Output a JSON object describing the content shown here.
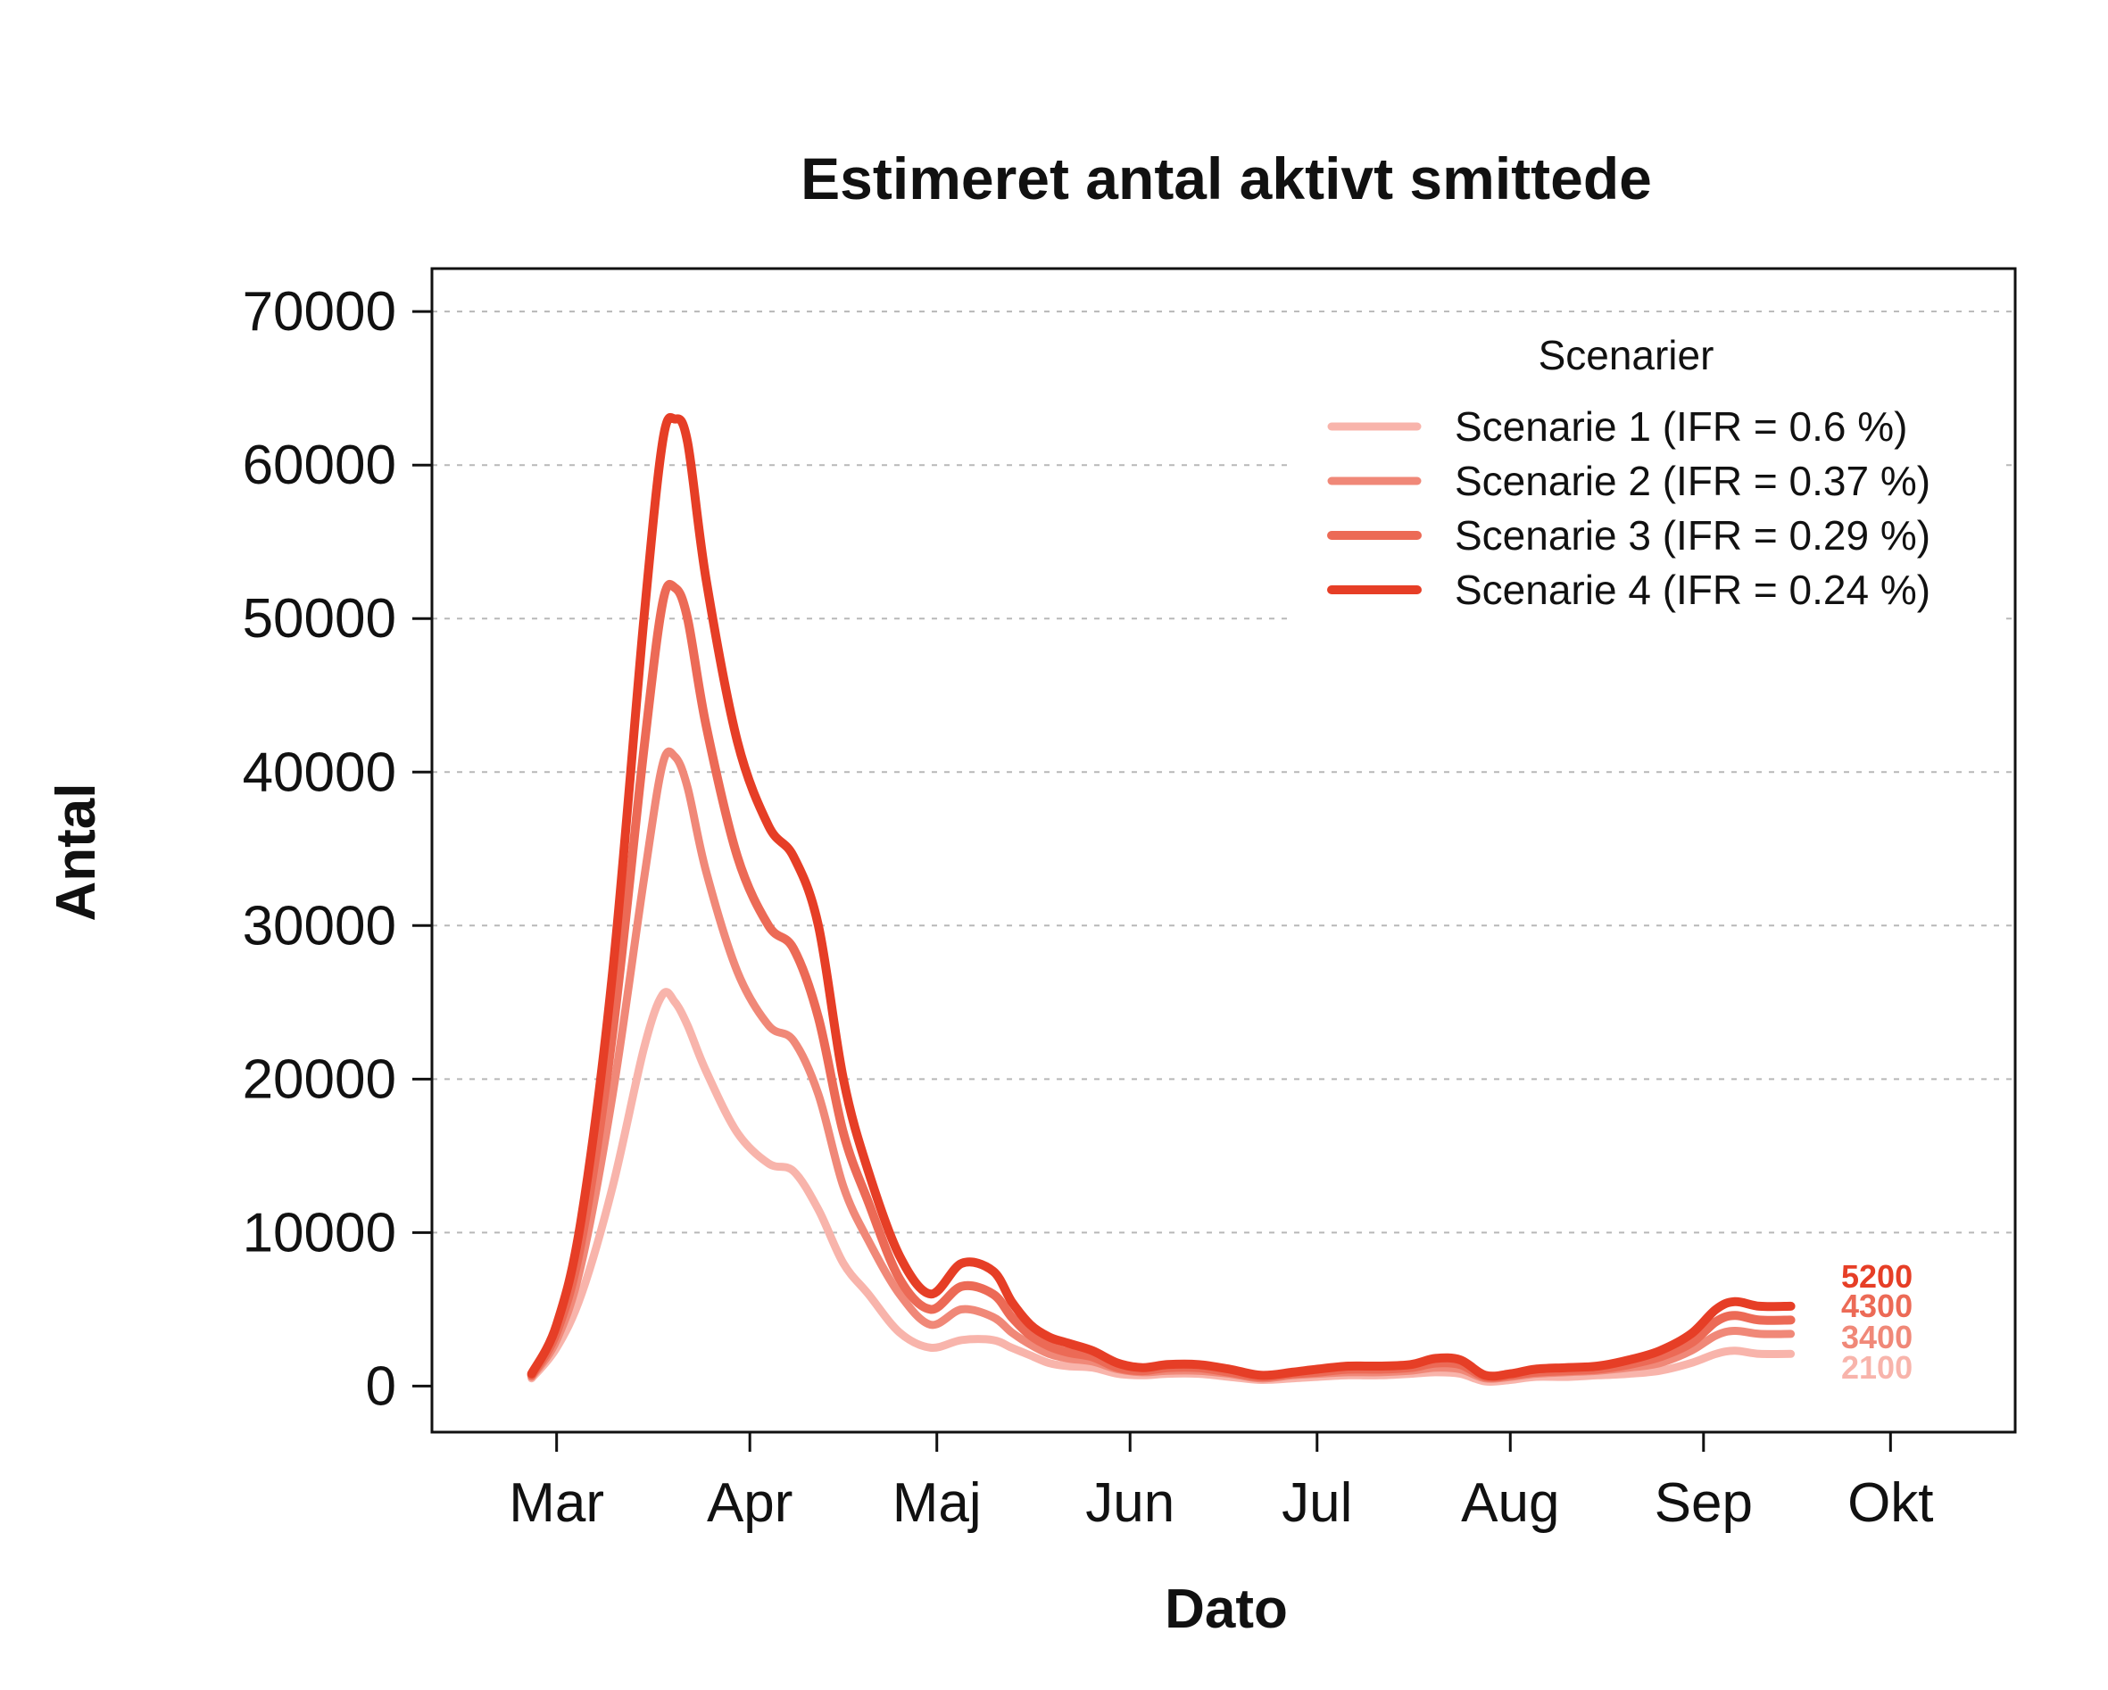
{
  "chart_data": {
    "type": "line",
    "title": "Estimeret antal aktivt smittede",
    "xlabel": "Dato",
    "ylabel": "Antal",
    "ylim": [
      -3000,
      72800
    ],
    "yticks": [
      0,
      10000,
      20000,
      30000,
      40000,
      50000,
      60000,
      70000
    ],
    "ytick_labels": [
      "0",
      "10000",
      "20000",
      "30000",
      "40000",
      "50000",
      "60000",
      "70000"
    ],
    "xlim": [
      "2020-02-10",
      "2020-10-21"
    ],
    "xticks": [
      "2020-03-01",
      "2020-04-01",
      "2020-05-01",
      "2020-06-01",
      "2020-07-01",
      "2020-08-01",
      "2020-09-01",
      "2020-10-01"
    ],
    "xtick_labels": [
      "Mar",
      "Apr",
      "Maj",
      "Jun",
      "Jul",
      "Aug",
      "Sep",
      "Okt"
    ],
    "grid": "horizontal dashed",
    "legend": {
      "title": "Scenarier",
      "placement": "top-right"
    },
    "x": [
      "2020-02-26",
      "2020-03-01",
      "2020-03-05",
      "2020-03-10",
      "2020-03-15",
      "2020-03-18",
      "2020-03-20",
      "2020-03-22",
      "2020-03-25",
      "2020-03-30",
      "2020-04-04",
      "2020-04-08",
      "2020-04-12",
      "2020-04-16",
      "2020-04-20",
      "2020-04-25",
      "2020-04-30",
      "2020-05-05",
      "2020-05-10",
      "2020-05-13",
      "2020-05-16",
      "2020-05-19",
      "2020-05-22",
      "2020-05-26",
      "2020-05-30",
      "2020-06-03",
      "2020-06-07",
      "2020-06-12",
      "2020-06-17",
      "2020-06-22",
      "2020-06-27",
      "2020-07-01",
      "2020-07-06",
      "2020-07-11",
      "2020-07-16",
      "2020-07-20",
      "2020-07-24",
      "2020-07-28",
      "2020-08-01",
      "2020-08-05",
      "2020-08-10",
      "2020-08-15",
      "2020-08-20",
      "2020-08-25",
      "2020-08-30",
      "2020-09-03",
      "2020-09-06",
      "2020-09-10",
      "2020-09-15"
    ],
    "series": [
      {
        "name": "Scenarie 1 (IFR = 0.6 %)",
        "color": "#f8b4ab",
        "end_label": "2100",
        "values": [
          500,
          2500,
          6000,
          13000,
          22000,
          25500,
          25000,
          23500,
          20500,
          16500,
          14500,
          14000,
          11500,
          8000,
          6000,
          3500,
          2500,
          3000,
          3000,
          2500,
          2000,
          1500,
          1300,
          1200,
          800,
          700,
          800,
          800,
          600,
          400,
          500,
          600,
          700,
          700,
          800,
          900,
          800,
          300,
          400,
          600,
          600,
          700,
          800,
          1000,
          1500,
          2100,
          2300,
          2100,
          2100
        ]
      },
      {
        "name": "Scenarie 2 (IFR = 0.37 %)",
        "color": "#f08878",
        "end_label": "3400",
        "values": [
          600,
          3000,
          8000,
          19000,
          33000,
          40500,
          41000,
          39000,
          33500,
          27000,
          23500,
          22500,
          19000,
          13000,
          9500,
          6000,
          4000,
          5000,
          4500,
          3500,
          2700,
          2100,
          1800,
          1600,
          1100,
          900,
          1000,
          1000,
          800,
          500,
          700,
          800,
          900,
          900,
          1000,
          1200,
          1100,
          500,
          600,
          800,
          900,
          1000,
          1200,
          1500,
          2300,
          3300,
          3600,
          3400,
          3400
        ]
      },
      {
        "name": "Scenarie 3 (IFR = 0.29 %)",
        "color": "#ec6a56",
        "end_label": "4300",
        "values": [
          700,
          3500,
          9500,
          23000,
          41500,
          51000,
          52000,
          50000,
          43000,
          34500,
          30000,
          28500,
          24000,
          16500,
          12000,
          7000,
          5000,
          6500,
          6000,
          4500,
          3300,
          2600,
          2200,
          1900,
          1200,
          1000,
          1200,
          1200,
          900,
          600,
          800,
          900,
          1100,
          1100,
          1200,
          1500,
          1400,
          600,
          700,
          900,
          1000,
          1100,
          1400,
          1900,
          2800,
          4200,
          4600,
          4300,
          4300
        ]
      },
      {
        "name": "Scenarie 4 (IFR = 0.24 %)",
        "color": "#e63e26",
        "end_label": "5200",
        "values": [
          800,
          4000,
          11000,
          27000,
          50000,
          61500,
          63000,
          61500,
          52500,
          42000,
          36500,
          34500,
          30000,
          20000,
          14000,
          8500,
          6000,
          8000,
          7500,
          5500,
          4000,
          3200,
          2800,
          2300,
          1500,
          1200,
          1400,
          1400,
          1100,
          700,
          900,
          1100,
          1300,
          1300,
          1400,
          1800,
          1700,
          700,
          800,
          1100,
          1200,
          1300,
          1700,
          2300,
          3400,
          5000,
          5500,
          5200,
          5200
        ]
      }
    ]
  }
}
